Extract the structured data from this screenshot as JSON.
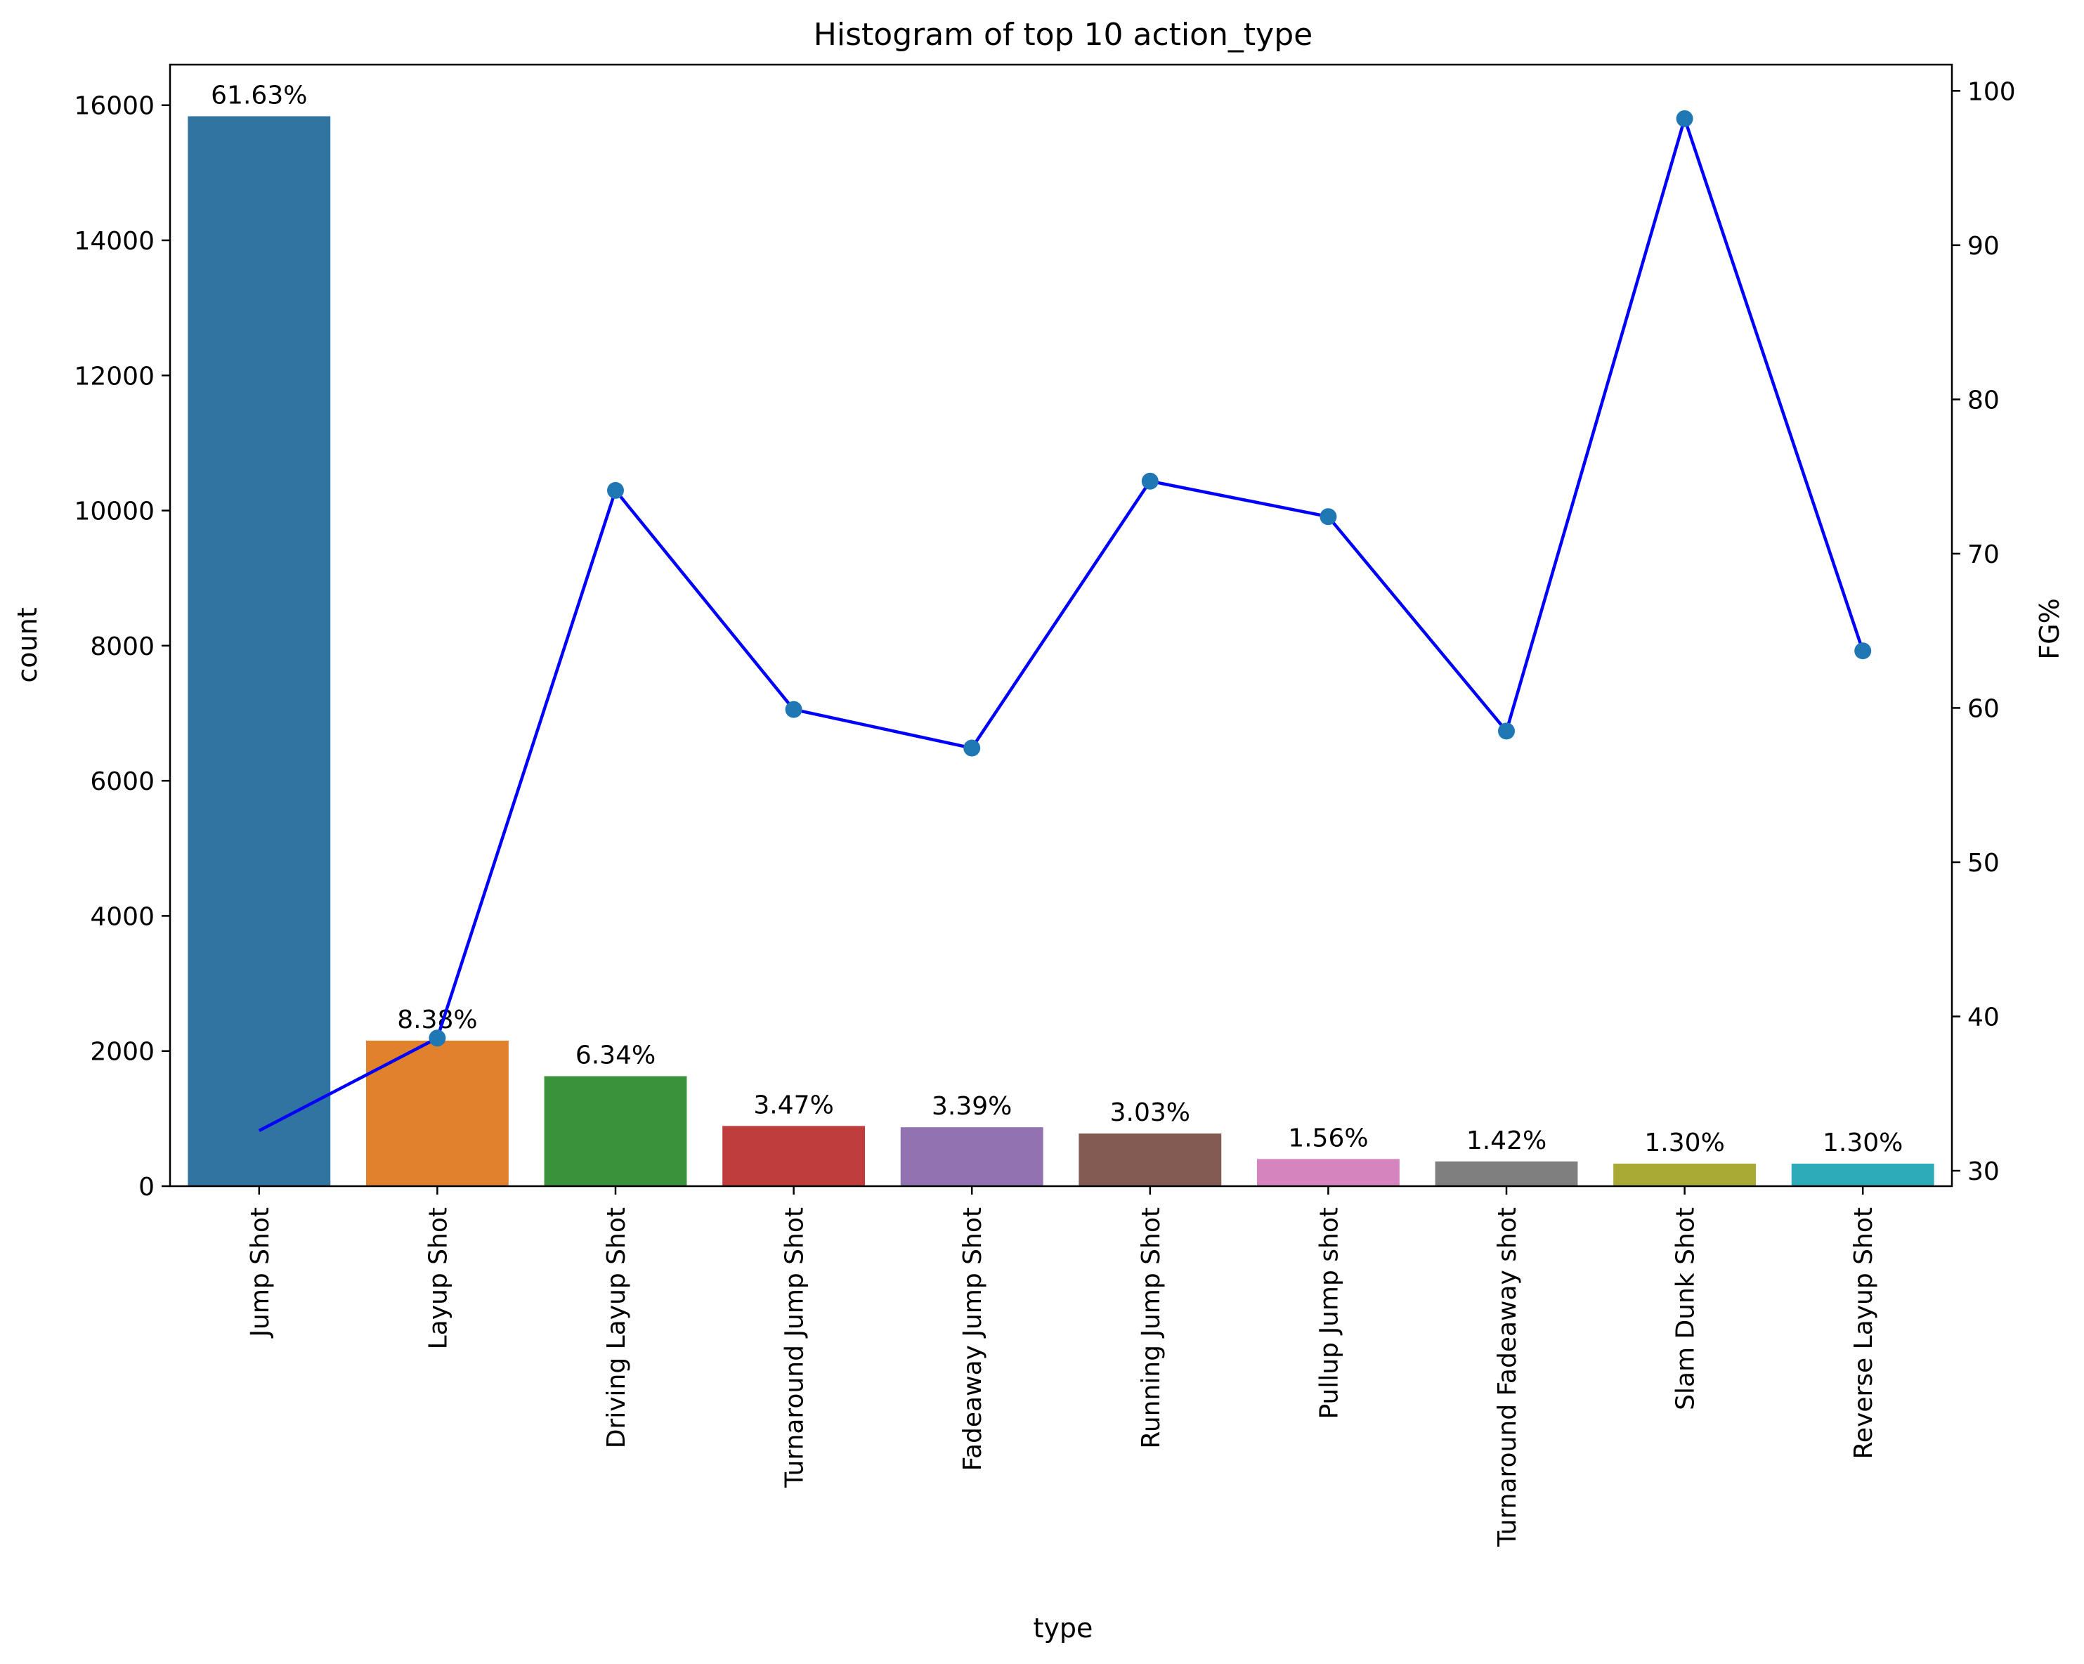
{
  "chart_data": {
    "type": "bar",
    "title": "Histogram of top 10 action_type",
    "xlabel": "type",
    "ylabel": "count",
    "y2label": "FG%",
    "ylim": [
      0,
      16600
    ],
    "y2lim": [
      29,
      101.7
    ],
    "yticks": [
      0,
      2000,
      4000,
      6000,
      8000,
      10000,
      12000,
      14000,
      16000
    ],
    "y2ticks": [
      30,
      40,
      50,
      60,
      70,
      80,
      90,
      100
    ],
    "categories": [
      "Jump Shot",
      "Layup Shot",
      "Driving Layup Shot",
      "Turnaround Jump Shot",
      "Fadeaway Jump Shot",
      "Running Jump Shot",
      "Pullup Jump shot",
      "Turnaround Fadeaway shot",
      "Slam Dunk Shot",
      "Reverse Layup Shot"
    ],
    "counts": [
      15836,
      2154,
      1628,
      891,
      872,
      779,
      402,
      366,
      334,
      334
    ],
    "percent_labels": [
      "61.63%",
      "8.38%",
      "6.34%",
      "3.47%",
      "3.39%",
      "3.03%",
      "1.56%",
      "1.42%",
      "1.30%",
      "1.30%"
    ],
    "fg_percent": [
      32.6,
      38.6,
      74.1,
      59.9,
      57.4,
      74.7,
      72.4,
      58.5,
      98.2,
      63.7
    ],
    "bar_colors": [
      "#3274a1",
      "#e1812c",
      "#3a923a",
      "#c03d3e",
      "#9372b2",
      "#845b53",
      "#d684bd",
      "#7f7f7f",
      "#a9aa35",
      "#2eabb8"
    ],
    "line_color": "#0000ff",
    "marker_color": "#1f77b4",
    "grid": false
  }
}
